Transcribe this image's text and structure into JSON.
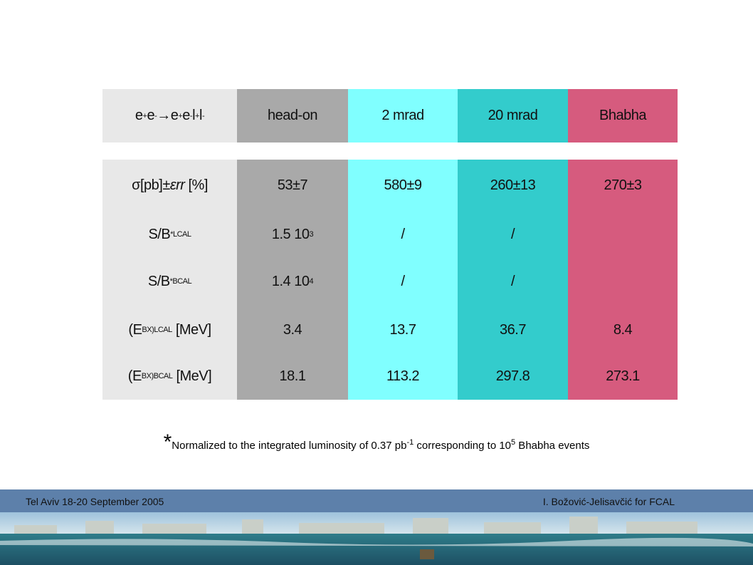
{
  "table": {
    "header": [
      [
        {
          "text": "e"
        },
        {
          "sup": "+"
        },
        {
          "text": "e"
        },
        {
          "sup": "-"
        },
        {
          "text": "→e"
        },
        {
          "sup": "+"
        },
        {
          "text": "e"
        },
        {
          "sup": "-"
        },
        {
          "text": "l"
        },
        {
          "sup": "+"
        },
        {
          "text": "l"
        },
        {
          "sup": "-"
        }
      ],
      [
        {
          "text": "head-on"
        }
      ],
      [
        {
          "text": "2 mrad"
        }
      ],
      [
        {
          "text": "20 mrad"
        }
      ],
      [
        {
          "text": "Bhabha"
        }
      ]
    ],
    "rows": [
      [
        [
          {
            "text": "σ[pb]±"
          },
          {
            "italic": "εrr"
          },
          {
            "text": " [%]"
          }
        ],
        [
          {
            "text": "53±7"
          }
        ],
        [
          {
            "text": "580±9"
          }
        ],
        [
          {
            "text": "260±13"
          }
        ],
        [
          {
            "text": "270±3"
          }
        ]
      ],
      [
        [
          {
            "text": "S/B"
          },
          {
            "sup": "*"
          },
          {
            "sub": "LCAL"
          }
        ],
        [
          {
            "text": "1.5 10"
          },
          {
            "sup": "3"
          }
        ],
        [
          {
            "text": "/"
          }
        ],
        [
          {
            "text": "/"
          }
        ],
        null
      ],
      [
        [
          {
            "text": "S/B"
          },
          {
            "sup": "*"
          },
          {
            "sub": "BCAL"
          }
        ],
        [
          {
            "text": "1.4 10"
          },
          {
            "sup": "4"
          }
        ],
        [
          {
            "text": "/"
          }
        ],
        [
          {
            "text": "/"
          }
        ],
        null
      ],
      [
        [
          {
            "text": "(E"
          },
          {
            "sup": "BX)"
          },
          {
            "sub": "LCAL"
          },
          {
            "text": " [MeV]"
          }
        ],
        [
          {
            "text": "3.4"
          }
        ],
        [
          {
            "text": "13.7"
          }
        ],
        [
          {
            "text": "36.7"
          }
        ],
        [
          {
            "text": "8.4"
          }
        ]
      ],
      [
        [
          {
            "text": "(E"
          },
          {
            "sup": "BX)"
          },
          {
            "sub": "BCAL"
          },
          {
            "text": " [MeV]"
          }
        ],
        [
          {
            "text": "18.1"
          }
        ],
        [
          {
            "text": "113.2"
          }
        ],
        [
          {
            "text": "297.8"
          }
        ],
        [
          {
            "text": "273.1"
          }
        ]
      ]
    ]
  },
  "footnote": [
    {
      "big": "*"
    },
    {
      "text": "Normalized to the integrated luminosity of 0.37 pb"
    },
    {
      "sup": "-1"
    },
    {
      "text": " corresponding to 10"
    },
    {
      "sup": "5"
    },
    {
      "text": " Bhabha events"
    }
  ],
  "footer": {
    "left": "Tel Aviv 18-20 September 2005",
    "right": "I. Božović-Jelisavčić for FCAL"
  }
}
